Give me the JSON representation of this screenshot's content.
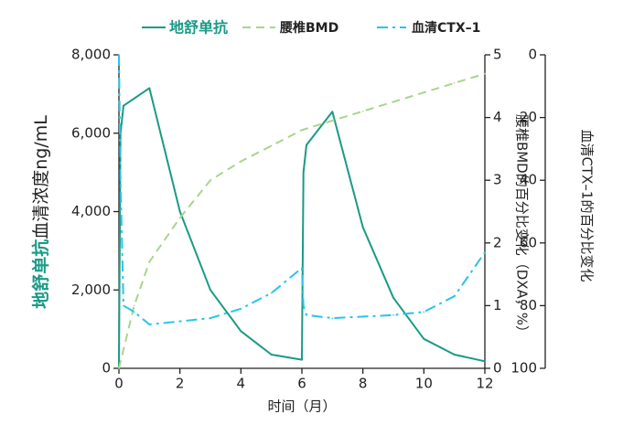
{
  "chart_data": {
    "type": "line",
    "xlabel": "时间（月）",
    "xlim": [
      0,
      12
    ],
    "x_ticks": [
      "0",
      "2",
      "4",
      "6",
      "8",
      "10",
      "12"
    ],
    "ylabel_left": {
      "bold": "地舒单抗",
      "rest": "血清浓度ng/mL"
    },
    "ylim_left": [
      0,
      8000
    ],
    "y_ticks_left": [
      "0",
      "2,000",
      "4,000",
      "6,000",
      "8,000"
    ],
    "ylabel_right1": "腰椎BMD的百分比变化（DXA，%）",
    "ylim_right1": [
      0,
      5
    ],
    "y_ticks_right1": [
      "0",
      "1",
      "2",
      "3",
      "4",
      "5"
    ],
    "ylabel_right2": "血清CTX–1的百分比变化",
    "ylim_right2": [
      0,
      100
    ],
    "y_ticks_right2": [
      "0",
      "20",
      "40",
      "60",
      "80",
      "100"
    ],
    "right2_inverted": true,
    "grid": false,
    "legend_position": "top",
    "series": [
      {
        "name": "地舒单抗",
        "axis": "left",
        "style": "solid",
        "color": "#1a9a85",
        "x": [
          0,
          0.05,
          0.15,
          1,
          2,
          3,
          4,
          5,
          6,
          6.05,
          6.15,
          7,
          8,
          9,
          10,
          11,
          12
        ],
        "y": [
          0,
          6000,
          6700,
          7150,
          4000,
          2000,
          950,
          350,
          220,
          5000,
          5700,
          6550,
          3600,
          1800,
          750,
          350,
          180
        ]
      },
      {
        "name": "腰椎BMD",
        "axis": "right1",
        "style": "dashed",
        "color": "#a8d58b",
        "x": [
          0,
          0.5,
          1,
          2,
          3,
          4,
          5,
          6,
          7,
          8,
          9,
          10,
          11,
          12
        ],
        "y": [
          0,
          1.0,
          1.7,
          2.4,
          3.0,
          3.3,
          3.55,
          3.8,
          3.95,
          4.1,
          4.25,
          4.4,
          4.55,
          4.7
        ]
      },
      {
        "name": "血清CTX–1",
        "axis": "right2",
        "style": "dashdot",
        "color": "#29c4e8",
        "x": [
          0,
          0.05,
          0.15,
          0.5,
          1,
          2,
          3,
          4,
          5,
          6,
          6.05,
          6.15,
          7,
          8,
          9,
          10,
          11,
          12
        ],
        "y": [
          0,
          40,
          80,
          82,
          86,
          85,
          84,
          81,
          76,
          68,
          80,
          83,
          84,
          83.5,
          83,
          82,
          77,
          63
        ]
      }
    ]
  }
}
